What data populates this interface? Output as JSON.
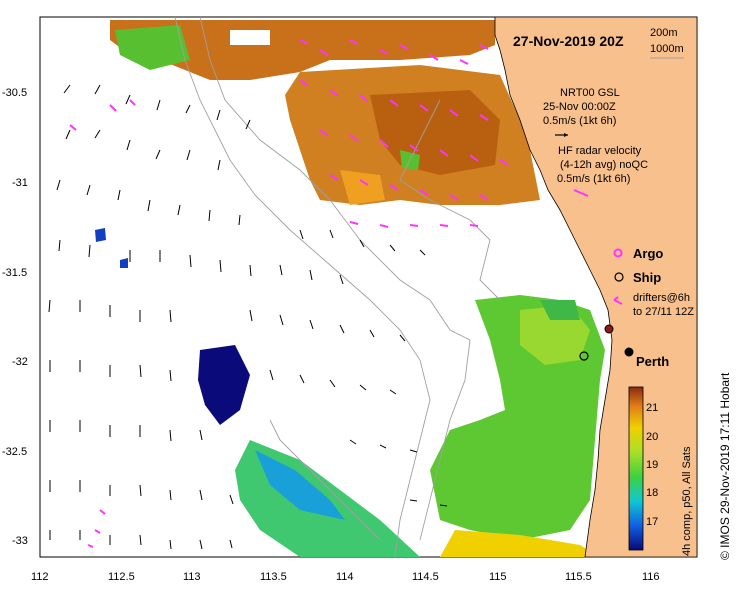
{
  "map": {
    "title": "27-Nov-2019 20Z",
    "depth_labels": [
      "200m",
      "1000m"
    ],
    "model": {
      "name": "NRT00 GSL",
      "time": "25-Nov 00:00Z",
      "scale": "0.5m/s (1kt 6h)"
    },
    "hf_radar": {
      "line1": "HF radar velocity",
      "line2": "(4-12h avg) noQC",
      "scale": "0.5m/s (1kt 6h)"
    },
    "legend": {
      "argo": "Argo",
      "ship": "Ship",
      "drifters1": "drifters@6h",
      "drifters2": "to 27/11 12Z"
    },
    "city": "Perth",
    "x_ticks": [
      "112",
      "112.5",
      "113",
      "113.5",
      "114",
      "114.5",
      "115",
      "115.5",
      "116"
    ],
    "y_ticks": [
      "-30.5",
      "-31",
      "-31.5",
      "-32",
      "-32.5",
      "-33"
    ],
    "colorbar": {
      "ticks": [
        "21",
        "20",
        "19",
        "18",
        "17"
      ],
      "caption": "4h comp, p50, All Sats"
    },
    "credit": "© IMOS 29-Nov-2019 17:11 Hobart",
    "colors": {
      "land": "#f8c08c",
      "warm": "#c8701a",
      "green": "#5ec832",
      "cold": "#1a2890",
      "magenta": "#ff33ff"
    }
  }
}
